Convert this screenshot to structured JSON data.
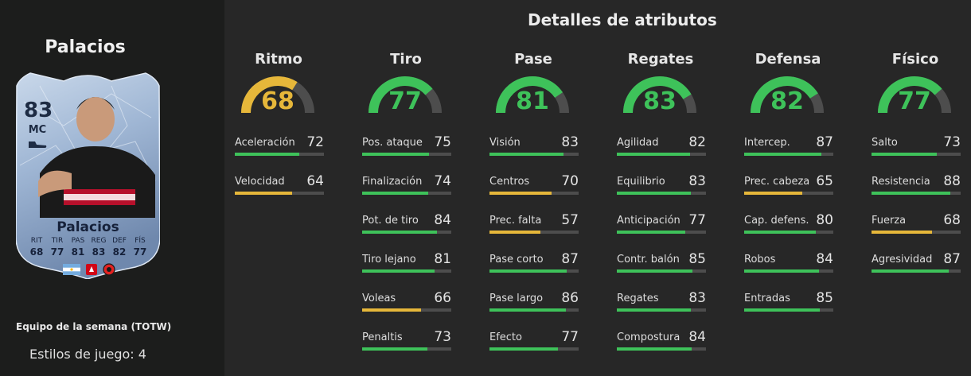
{
  "player": {
    "name": "Palacios",
    "card": {
      "rating": "83",
      "position": "MC",
      "name": "Palacios",
      "stats": [
        {
          "label": "RIT",
          "value": "68"
        },
        {
          "label": "TIR",
          "value": "77"
        },
        {
          "label": "PAS",
          "value": "81"
        },
        {
          "label": "REG",
          "value": "83"
        },
        {
          "label": "DEF",
          "value": "82"
        },
        {
          "label": "FÍS",
          "value": "77"
        }
      ]
    },
    "team_label": "Equipo de la semana (TOTW)",
    "styles_label": "Estilos de juego: 4"
  },
  "colors": {
    "green": "#3ec25a",
    "yellow": "#e6b73a",
    "track": "#4d4d4d"
  },
  "attributes": {
    "title": "Detalles de atributos",
    "columns": [
      {
        "name": "Ritmo",
        "value": 68,
        "color": "yellow",
        "stats": [
          {
            "name": "Aceleración",
            "value": 72,
            "color": "green"
          },
          {
            "name": "Velocidad",
            "value": 64,
            "color": "yellow"
          }
        ]
      },
      {
        "name": "Tiro",
        "value": 77,
        "color": "green",
        "stats": [
          {
            "name": "Pos. ataque",
            "value": 75,
            "color": "green"
          },
          {
            "name": "Finalización",
            "value": 74,
            "color": "green"
          },
          {
            "name": "Pot. de tiro",
            "value": 84,
            "color": "green"
          },
          {
            "name": "Tiro lejano",
            "value": 81,
            "color": "green"
          },
          {
            "name": "Voleas",
            "value": 66,
            "color": "yellow"
          },
          {
            "name": "Penaltis",
            "value": 73,
            "color": "green"
          }
        ]
      },
      {
        "name": "Pase",
        "value": 81,
        "color": "green",
        "stats": [
          {
            "name": "Visión",
            "value": 83,
            "color": "green"
          },
          {
            "name": "Centros",
            "value": 70,
            "color": "yellow"
          },
          {
            "name": "Prec. falta",
            "value": 57,
            "color": "yellow"
          },
          {
            "name": "Pase corto",
            "value": 87,
            "color": "green"
          },
          {
            "name": "Pase largo",
            "value": 86,
            "color": "green"
          },
          {
            "name": "Efecto",
            "value": 77,
            "color": "green"
          }
        ]
      },
      {
        "name": "Regates",
        "value": 83,
        "color": "green",
        "stats": [
          {
            "name": "Agilidad",
            "value": 82,
            "color": "green"
          },
          {
            "name": "Equilibrio",
            "value": 83,
            "color": "green"
          },
          {
            "name": "Anticipación",
            "value": 77,
            "color": "green"
          },
          {
            "name": "Contr. balón",
            "value": 85,
            "color": "green"
          },
          {
            "name": "Regates",
            "value": 83,
            "color": "green"
          },
          {
            "name": "Compostura",
            "value": 84,
            "color": "green"
          }
        ]
      },
      {
        "name": "Defensa",
        "value": 82,
        "color": "green",
        "stats": [
          {
            "name": "Intercep.",
            "value": 87,
            "color": "green"
          },
          {
            "name": "Prec. cabeza",
            "value": 65,
            "color": "yellow"
          },
          {
            "name": "Cap. defens.",
            "value": 80,
            "color": "green"
          },
          {
            "name": "Robos",
            "value": 84,
            "color": "green"
          },
          {
            "name": "Entradas",
            "value": 85,
            "color": "green"
          }
        ]
      },
      {
        "name": "Físico",
        "value": 77,
        "color": "green",
        "stats": [
          {
            "name": "Salto",
            "value": 73,
            "color": "green"
          },
          {
            "name": "Resistencia",
            "value": 88,
            "color": "green"
          },
          {
            "name": "Fuerza",
            "value": 68,
            "color": "yellow"
          },
          {
            "name": "Agresividad",
            "value": 87,
            "color": "green"
          }
        ]
      }
    ]
  }
}
